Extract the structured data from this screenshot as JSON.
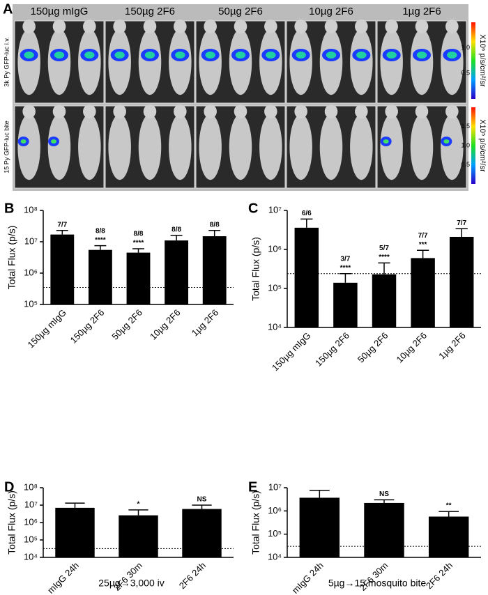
{
  "panel_a": {
    "label": "A",
    "columns": [
      "150µg mIgG",
      "150µg 2F6",
      "50µg 2F6",
      "10µg 2F6",
      "1µg 2F6"
    ],
    "rows": [
      "3k Py GFP-luc i.v.",
      "15 Py GFP-luc bite"
    ],
    "colorbars": [
      {
        "unit": "X10⁶ p/s/cm²/sr",
        "ticks": [
          "1.0",
          "0.5"
        ]
      },
      {
        "unit": "X10⁵ p/s/cm²/sr",
        "ticks": [
          "1.5",
          "1.0",
          "0.5"
        ]
      }
    ]
  },
  "chart_data": [
    {
      "type": "bar",
      "panel_label": "B",
      "y_label": "Total Flux (p/s)",
      "log_scale": true,
      "color": "#000000",
      "categories": [
        "150µg mIgG",
        "150µg 2F6",
        "50µg 2F6",
        "10µg 2F6",
        "1µg 2F6"
      ],
      "values": [
        17000000,
        5500000,
        4500000,
        11000000,
        15000000
      ],
      "errors": [
        6000000,
        2000000,
        1500000,
        5000000,
        8000000
      ],
      "fractions": [
        "7/7",
        "8/8",
        "8/8",
        "8/8",
        "8/8"
      ],
      "significance": [
        null,
        "****",
        "****",
        null,
        null
      ],
      "threshold": 350000,
      "ylim": [
        100000,
        100000000
      ],
      "yticks": [
        {
          "value": 100000,
          "label": "10⁵"
        },
        {
          "value": 1000000,
          "label": "10⁶"
        },
        {
          "value": 10000000,
          "label": "10⁷"
        },
        {
          "value": 100000000,
          "label": "10⁸"
        }
      ]
    },
    {
      "type": "bar",
      "panel_label": "C",
      "y_label": "Total Flux (p/s)",
      "log_scale": true,
      "color": "#000000",
      "categories": [
        "150µg mIgG",
        "150µg 2F6",
        "50µg 2F6",
        "10µg 2F6",
        "1µg 2F6"
      ],
      "values": [
        3600000,
        140000,
        230000,
        600000,
        2100000
      ],
      "errors": [
        2400000,
        100000,
        220000,
        350000,
        1300000
      ],
      "fractions": [
        "6/6",
        "3/7",
        "5/7",
        "7/7",
        "7/7"
      ],
      "significance": [
        null,
        "****",
        "****",
        "***",
        null
      ],
      "threshold": 240000,
      "ylim": [
        10000,
        10000000
      ],
      "yticks": [
        {
          "value": 10000,
          "label": "10⁴"
        },
        {
          "value": 100000,
          "label": "10⁵"
        },
        {
          "value": 1000000,
          "label": "10⁶"
        },
        {
          "value": 10000000,
          "label": "10⁷"
        }
      ]
    },
    {
      "type": "bar",
      "panel_label": "D",
      "y_label": "Total Flux (p/s)",
      "x_label": "25µg→3,000 iv",
      "log_scale": true,
      "color": "#000000",
      "categories": [
        "mIgG 24h",
        "2F6 30m",
        "2F6 24h"
      ],
      "values": [
        7000000,
        2600000,
        6000000
      ],
      "errors": [
        6000000,
        2700000,
        4000000
      ],
      "significance": [
        null,
        "*",
        "NS"
      ],
      "threshold": 32000,
      "ylim": [
        10000,
        100000000
      ],
      "yticks": [
        {
          "value": 10000,
          "label": "10⁴"
        },
        {
          "value": 100000,
          "label": "10⁵"
        },
        {
          "value": 1000000,
          "label": "10⁶"
        },
        {
          "value": 10000000,
          "label": "10⁷"
        },
        {
          "value": 100000000,
          "label": "10⁸"
        }
      ]
    },
    {
      "type": "bar",
      "panel_label": "E",
      "y_label": "Total Flux (p/s)",
      "x_label": "5µg→15 mosquito bite",
      "log_scale": true,
      "color": "#000000",
      "categories": [
        "mIgG 24h",
        "2F6 30m",
        "2F6 24h"
      ],
      "values": [
        3700000,
        2200000,
        570000
      ],
      "errors": [
        4000000,
        800000,
        380000
      ],
      "significance": [
        null,
        "NS",
        "**"
      ],
      "threshold": 30000,
      "ylim": [
        10000,
        10000000
      ],
      "yticks": [
        {
          "value": 10000,
          "label": "10⁴"
        },
        {
          "value": 100000,
          "label": "10⁵"
        },
        {
          "value": 1000000,
          "label": "10⁶"
        },
        {
          "value": 10000000,
          "label": "10⁷"
        }
      ]
    }
  ]
}
